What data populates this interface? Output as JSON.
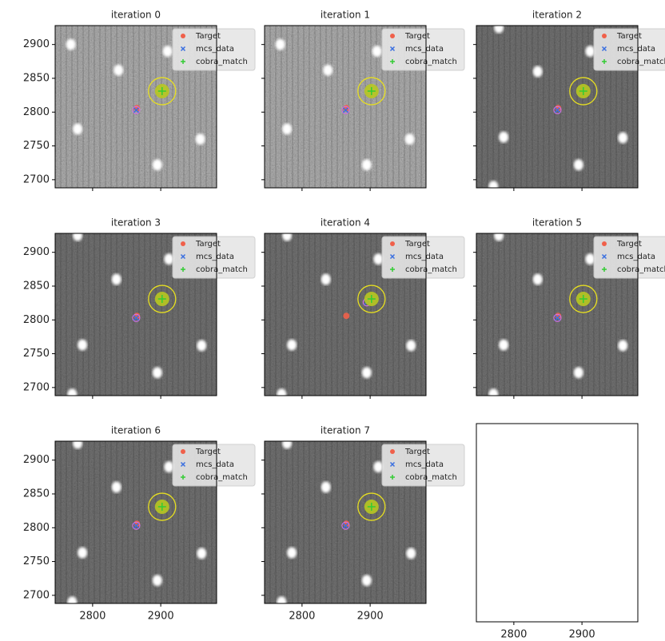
{
  "chart_data": [
    {
      "type": "scatter",
      "title": "iteration 0",
      "xlim": [
        2745,
        2982
      ],
      "ylim": [
        2688,
        2928
      ],
      "xticks": [
        2800,
        2900
      ],
      "yticks": [
        2700,
        2750,
        2800,
        2850,
        2900
      ],
      "show_xticklabels": false,
      "show_yticklabels": true,
      "legend": "upper right",
      "series": [
        {
          "name": "Target",
          "color": "#f0604a",
          "marker": "o",
          "x": [
            2865
          ],
          "y": [
            2806
          ]
        },
        {
          "name": "mcs_data",
          "color": "#3a6fe0",
          "marker": "x",
          "x": [
            2864
          ],
          "y": [
            2803
          ]
        },
        {
          "name": "cobra_match",
          "color": "#33cc33",
          "marker": "+",
          "x": [
            2902
          ],
          "y": [
            2831
          ]
        }
      ]
    },
    {
      "type": "scatter",
      "title": "iteration 1",
      "xlim": [
        2745,
        2982
      ],
      "ylim": [
        2688,
        2928
      ],
      "xticks": [
        2800,
        2900
      ],
      "yticks": [
        2700,
        2750,
        2800,
        2850,
        2900
      ],
      "show_xticklabels": false,
      "show_yticklabels": false,
      "legend": "upper right",
      "series": [
        {
          "name": "Target",
          "color": "#f0604a",
          "marker": "o",
          "x": [
            2865
          ],
          "y": [
            2806
          ]
        },
        {
          "name": "mcs_data",
          "color": "#3a6fe0",
          "marker": "x",
          "x": [
            2864
          ],
          "y": [
            2803
          ]
        },
        {
          "name": "cobra_match",
          "color": "#33cc33",
          "marker": "+",
          "x": [
            2902
          ],
          "y": [
            2831
          ]
        }
      ]
    },
    {
      "type": "scatter",
      "title": "iteration 2",
      "xlim": [
        2745,
        2982
      ],
      "ylim": [
        2688,
        2928
      ],
      "xticks": [
        2800,
        2900
      ],
      "yticks": [
        2700,
        2750,
        2800,
        2850,
        2900
      ],
      "show_xticklabels": false,
      "show_yticklabels": false,
      "legend": "upper right",
      "series": [
        {
          "name": "Target",
          "color": "#f0604a",
          "marker": "o",
          "x": [
            2865
          ],
          "y": [
            2806
          ]
        },
        {
          "name": "mcs_data",
          "color": "#3a6fe0",
          "marker": "x",
          "x": [
            2864
          ],
          "y": [
            2803
          ]
        },
        {
          "name": "cobra_match",
          "color": "#33cc33",
          "marker": "+",
          "x": [
            2902
          ],
          "y": [
            2831
          ]
        }
      ]
    },
    {
      "type": "scatter",
      "title": "iteration 3",
      "xlim": [
        2745,
        2982
      ],
      "ylim": [
        2688,
        2928
      ],
      "xticks": [
        2800,
        2900
      ],
      "yticks": [
        2700,
        2750,
        2800,
        2850,
        2900
      ],
      "show_xticklabels": false,
      "show_yticklabels": true,
      "legend": "upper right",
      "series": [
        {
          "name": "Target",
          "color": "#f0604a",
          "marker": "o",
          "x": [
            2865
          ],
          "y": [
            2806
          ]
        },
        {
          "name": "mcs_data",
          "color": "#3a6fe0",
          "marker": "x",
          "x": [
            2864
          ],
          "y": [
            2803
          ]
        },
        {
          "name": "cobra_match",
          "color": "#33cc33",
          "marker": "+",
          "x": [
            2902
          ],
          "y": [
            2831
          ]
        }
      ]
    },
    {
      "type": "scatter",
      "title": "iteration 4",
      "xlim": [
        2745,
        2982
      ],
      "ylim": [
        2688,
        2928
      ],
      "xticks": [
        2800,
        2900
      ],
      "yticks": [
        2700,
        2750,
        2800,
        2850,
        2900
      ],
      "show_xticklabels": false,
      "show_yticklabels": false,
      "legend": "upper right",
      "series": [
        {
          "name": "Target",
          "color": "#f0604a",
          "marker": "o",
          "x": [
            2865
          ],
          "y": [
            2806
          ]
        },
        {
          "name": "mcs_data",
          "color": "#3a6fe0",
          "marker": "x",
          "x": [
            2895
          ],
          "y": [
            2826
          ]
        },
        {
          "name": "cobra_match",
          "color": "#33cc33",
          "marker": "+",
          "x": [
            2902
          ],
          "y": [
            2831
          ]
        }
      ]
    },
    {
      "type": "scatter",
      "title": "iteration 5",
      "xlim": [
        2745,
        2982
      ],
      "ylim": [
        2688,
        2928
      ],
      "xticks": [
        2800,
        2900
      ],
      "yticks": [
        2700,
        2750,
        2800,
        2850,
        2900
      ],
      "show_xticklabels": false,
      "show_yticklabels": false,
      "legend": "upper right",
      "series": [
        {
          "name": "Target",
          "color": "#f0604a",
          "marker": "o",
          "x": [
            2865
          ],
          "y": [
            2806
          ]
        },
        {
          "name": "mcs_data",
          "color": "#3a6fe0",
          "marker": "x",
          "x": [
            2864
          ],
          "y": [
            2803
          ]
        },
        {
          "name": "cobra_match",
          "color": "#33cc33",
          "marker": "+",
          "x": [
            2902
          ],
          "y": [
            2831
          ]
        }
      ]
    },
    {
      "type": "scatter",
      "title": "iteration 6",
      "xlim": [
        2745,
        2982
      ],
      "ylim": [
        2688,
        2928
      ],
      "xticks": [
        2800,
        2900
      ],
      "yticks": [
        2700,
        2750,
        2800,
        2850,
        2900
      ],
      "show_xticklabels": true,
      "show_yticklabels": true,
      "legend": "upper right",
      "series": [
        {
          "name": "Target",
          "color": "#f0604a",
          "marker": "o",
          "x": [
            2865
          ],
          "y": [
            2806
          ]
        },
        {
          "name": "mcs_data",
          "color": "#3a6fe0",
          "marker": "x",
          "x": [
            2864
          ],
          "y": [
            2803
          ]
        },
        {
          "name": "cobra_match",
          "color": "#33cc33",
          "marker": "+",
          "x": [
            2902
          ],
          "y": [
            2831
          ]
        }
      ]
    },
    {
      "type": "scatter",
      "title": "iteration 7",
      "xlim": [
        2745,
        2982
      ],
      "ylim": [
        2688,
        2928
      ],
      "xticks": [
        2800,
        2900
      ],
      "yticks": [
        2700,
        2750,
        2800,
        2850,
        2900
      ],
      "show_xticklabels": true,
      "show_yticklabels": false,
      "legend": "upper right",
      "series": [
        {
          "name": "Target",
          "color": "#f0604a",
          "marker": "o",
          "x": [
            2865
          ],
          "y": [
            2806
          ]
        },
        {
          "name": "mcs_data",
          "color": "#3a6fe0",
          "marker": "x",
          "x": [
            2864
          ],
          "y": [
            2803
          ]
        },
        {
          "name": "cobra_match",
          "color": "#33cc33",
          "marker": "+",
          "x": [
            2902
          ],
          "y": [
            2831
          ]
        }
      ]
    },
    {
      "type": "empty",
      "xlim": [
        2745,
        2982
      ],
      "xticks": [
        2800,
        2900
      ],
      "show_xticklabels": true
    }
  ]
}
